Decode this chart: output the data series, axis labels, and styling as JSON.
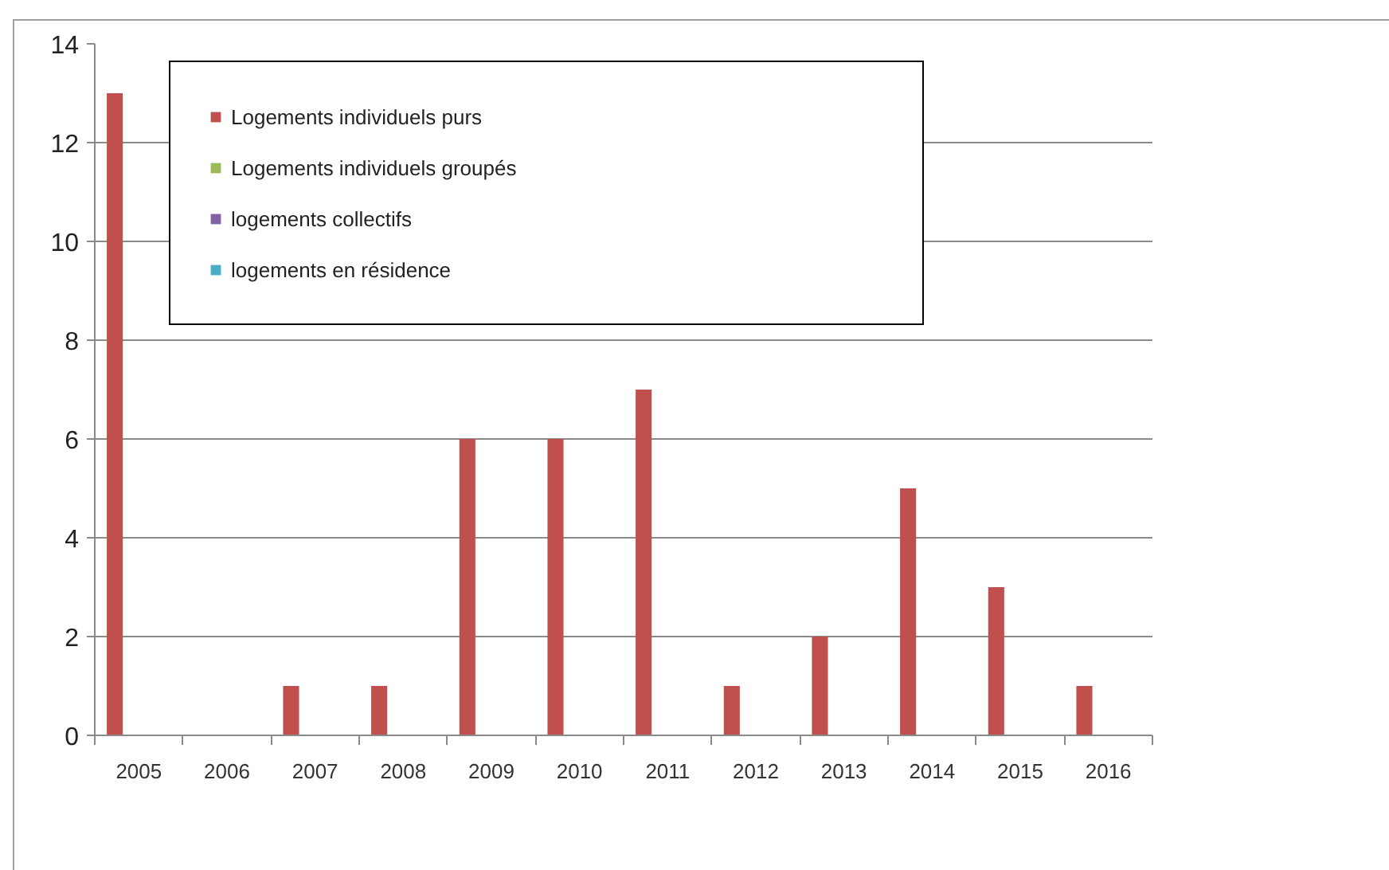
{
  "chart_data": {
    "type": "bar",
    "categories": [
      "2005",
      "2006",
      "2007",
      "2008",
      "2009",
      "2010",
      "2011",
      "2012",
      "2013",
      "2014",
      "2015",
      "2016"
    ],
    "series": [
      {
        "name": "Logements individuels purs",
        "color": "#c0504d",
        "values": [
          13,
          0,
          1,
          1,
          6,
          6,
          7,
          1,
          2,
          5,
          3,
          1
        ]
      },
      {
        "name": "Logements individuels groupés",
        "color": "#9bbb59",
        "values": [
          0,
          0,
          0,
          0,
          0,
          0,
          0,
          0,
          0,
          0,
          0,
          0
        ]
      },
      {
        "name": "logements collectifs",
        "color": "#8064a2",
        "values": [
          0,
          0,
          0,
          0,
          0,
          0,
          0,
          0,
          0,
          0,
          0,
          0
        ]
      },
      {
        "name": "logements en résidence",
        "color": "#4bacc6",
        "values": [
          0,
          0,
          0,
          0,
          0,
          0,
          0,
          0,
          0,
          0,
          0,
          0
        ]
      }
    ],
    "ylim": [
      0,
      14
    ],
    "yticks": [
      0,
      2,
      4,
      6,
      8,
      10,
      12,
      14
    ],
    "grid": "y",
    "legend": "top left"
  }
}
